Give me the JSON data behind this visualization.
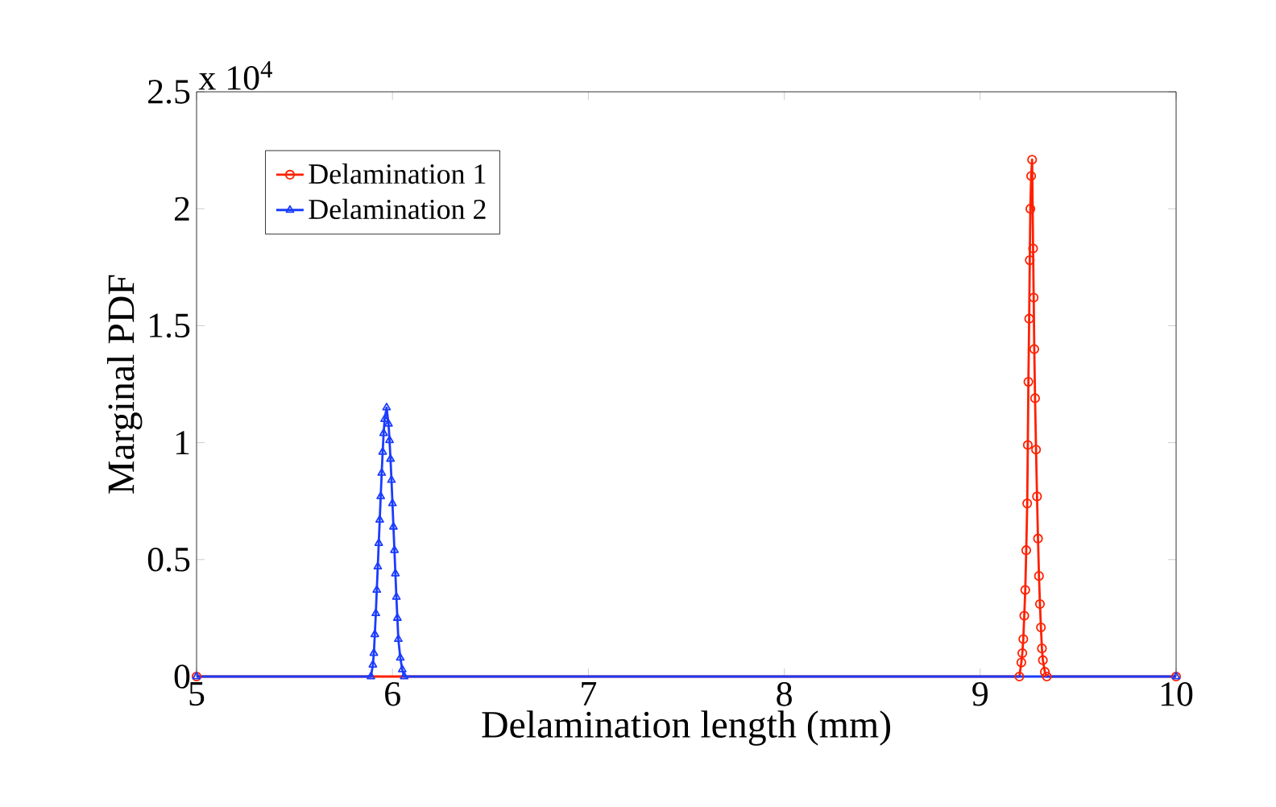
{
  "chart_data": {
    "type": "line",
    "xlabel": "Delamination length (mm)",
    "ylabel": "Marginal PDF",
    "annotations": [
      "x 10$^{4}$"
    ],
    "xlim": [
      5,
      10
    ],
    "ylim": [
      0,
      2.5
    ],
    "xticks": [
      5,
      6,
      7,
      8,
      9,
      10
    ],
    "yticks": [
      0,
      0.5,
      1,
      1.5,
      2,
      2.5
    ],
    "legend": "top left",
    "line_style": "solid",
    "grid": false,
    "series": [
      {
        "name": "Delamination 1",
        "color": "#ff2000",
        "marker": "circle",
        "x": [
          5,
          9.2,
          9.21,
          9.215,
          9.22,
          9.225,
          9.23,
          9.235,
          9.24,
          9.243,
          9.246,
          9.25,
          9.253,
          9.256,
          9.26,
          9.265,
          9.27,
          9.273,
          9.276,
          9.28,
          9.285,
          9.29,
          9.295,
          9.3,
          9.305,
          9.31,
          9.315,
          9.32,
          9.33,
          9.34,
          10
        ],
        "values": [
          0,
          0,
          0.06,
          0.1,
          0.16,
          0.26,
          0.37,
          0.54,
          0.74,
          0.99,
          1.26,
          1.53,
          1.78,
          2.0,
          2.14,
          2.21,
          1.83,
          1.62,
          1.4,
          1.19,
          0.97,
          0.77,
          0.59,
          0.43,
          0.31,
          0.21,
          0.12,
          0.07,
          0.02,
          0,
          0
        ]
      },
      {
        "name": "Delamination 2",
        "color": "#1a3cff",
        "marker": "triangle",
        "x": [
          5,
          5.89,
          5.9,
          5.905,
          5.91,
          5.915,
          5.92,
          5.925,
          5.93,
          5.935,
          5.94,
          5.945,
          5.95,
          5.955,
          5.96,
          5.965,
          5.97,
          5.975,
          5.98,
          5.985,
          5.99,
          5.995,
          6.0,
          6.005,
          6.01,
          6.015,
          6.02,
          6.025,
          6.03,
          6.04,
          6.05,
          6.06,
          10
        ],
        "values": [
          0,
          0,
          0.05,
          0.1,
          0.18,
          0.27,
          0.37,
          0.47,
          0.57,
          0.67,
          0.77,
          0.87,
          0.96,
          1.04,
          1.1,
          null,
          1.15,
          null,
          1.08,
          1.01,
          0.93,
          0.84,
          0.74,
          0.64,
          0.54,
          0.44,
          0.34,
          0.25,
          0.16,
          0.08,
          0.03,
          0,
          0
        ]
      }
    ]
  }
}
